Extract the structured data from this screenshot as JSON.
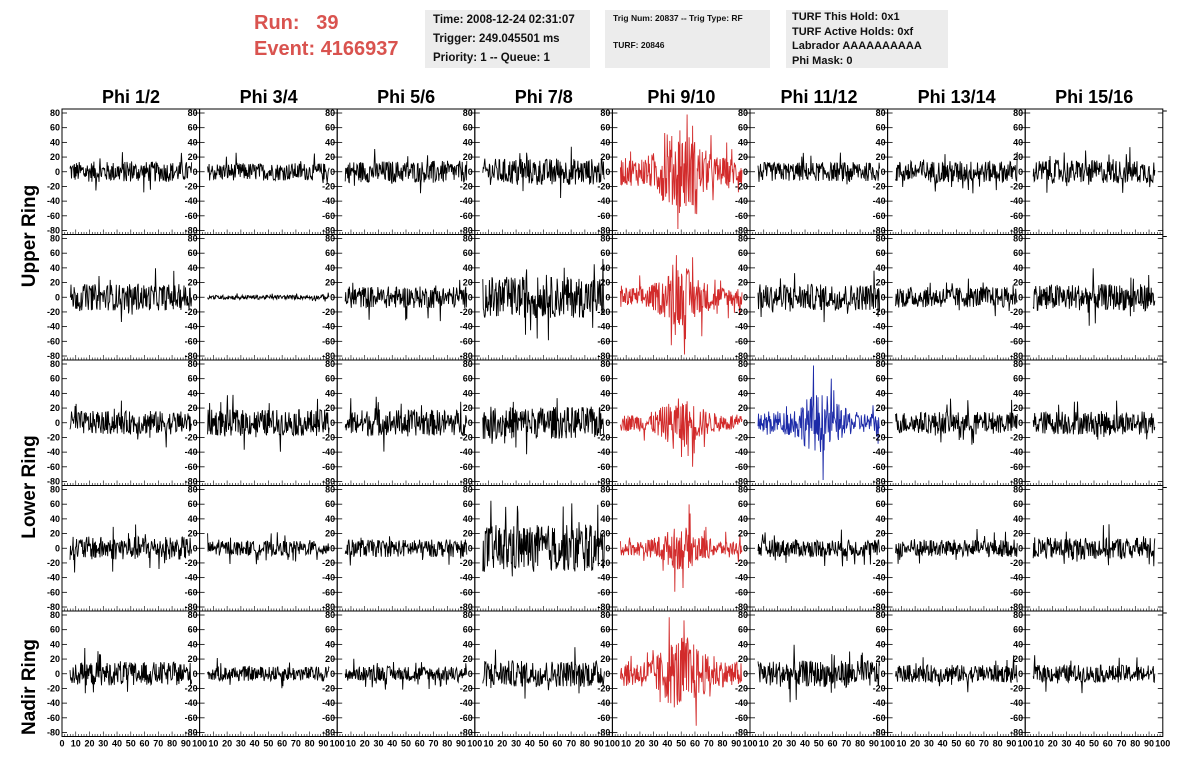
{
  "header": {
    "run_label": "Run:",
    "run_value": "39",
    "event_label": "Event:",
    "event_value": "4166937"
  },
  "info_time": {
    "time": "Time: 2008-12-24 02:31:07",
    "trigger": "Trigger: 249.045501 ms",
    "priority": "Priority: 1 -- Queue: 1"
  },
  "info_trig": {
    "trig": "Trig Num: 20837 -- Trig Type: RF",
    "turf": "TURF: 20846"
  },
  "info_turf": {
    "this_hold": "TURF This Hold: 0x1",
    "active_holds": "TURF Active Holds: 0xf",
    "labrador": "Labrador AAAAAAAAAA",
    "phi_mask": "Phi Mask: 0"
  },
  "columns": [
    "Phi 1/2",
    "Phi 3/4",
    "Phi 5/6",
    "Phi 7/8",
    "Phi 9/10",
    "Phi 11/12",
    "Phi 13/14",
    "Phi 15/16"
  ],
  "ring_labels": [
    "Upper Ring",
    "Lower Ring",
    "Nadir Ring"
  ],
  "colors": {
    "normal": "#000000",
    "triggered": "#d22b2b",
    "highlight": "#1c2aa8",
    "run_text": "#d9534f",
    "info_bg": "#ececec"
  },
  "chart_data": {
    "type": "line",
    "description_rows": 5,
    "x_ticks": [
      "0",
      "10",
      "20",
      "30",
      "40",
      "50",
      "60",
      "70",
      "80",
      "90",
      "100"
    ],
    "y_ticks": [
      "80",
      "60",
      "40",
      "20",
      "0",
      "-20",
      "-40",
      "-60",
      "-80"
    ],
    "xlim": [
      0,
      100
    ],
    "ylim": [
      -80,
      80
    ],
    "grid": false,
    "panel_amplitude": [
      [
        14,
        12,
        15,
        18,
        42,
        13,
        15,
        16
      ],
      [
        18,
        3,
        15,
        28,
        30,
        18,
        14,
        18
      ],
      [
        16,
        18,
        18,
        22,
        25,
        30,
        15,
        16
      ],
      [
        16,
        10,
        12,
        32,
        22,
        12,
        12,
        15
      ],
      [
        16,
        10,
        10,
        18,
        38,
        18,
        12,
        12
      ]
    ],
    "panel_color": [
      [
        "normal",
        "normal",
        "normal",
        "normal",
        "triggered",
        "normal",
        "normal",
        "normal"
      ],
      [
        "normal",
        "normal",
        "normal",
        "normal",
        "triggered",
        "normal",
        "normal",
        "normal"
      ],
      [
        "normal",
        "normal",
        "normal",
        "normal",
        "triggered",
        "highlight",
        "normal",
        "normal"
      ],
      [
        "normal",
        "normal",
        "normal",
        "normal",
        "triggered",
        "normal",
        "normal",
        "normal"
      ],
      [
        "normal",
        "normal",
        "normal",
        "normal",
        "triggered",
        "normal",
        "normal",
        "normal"
      ]
    ]
  }
}
